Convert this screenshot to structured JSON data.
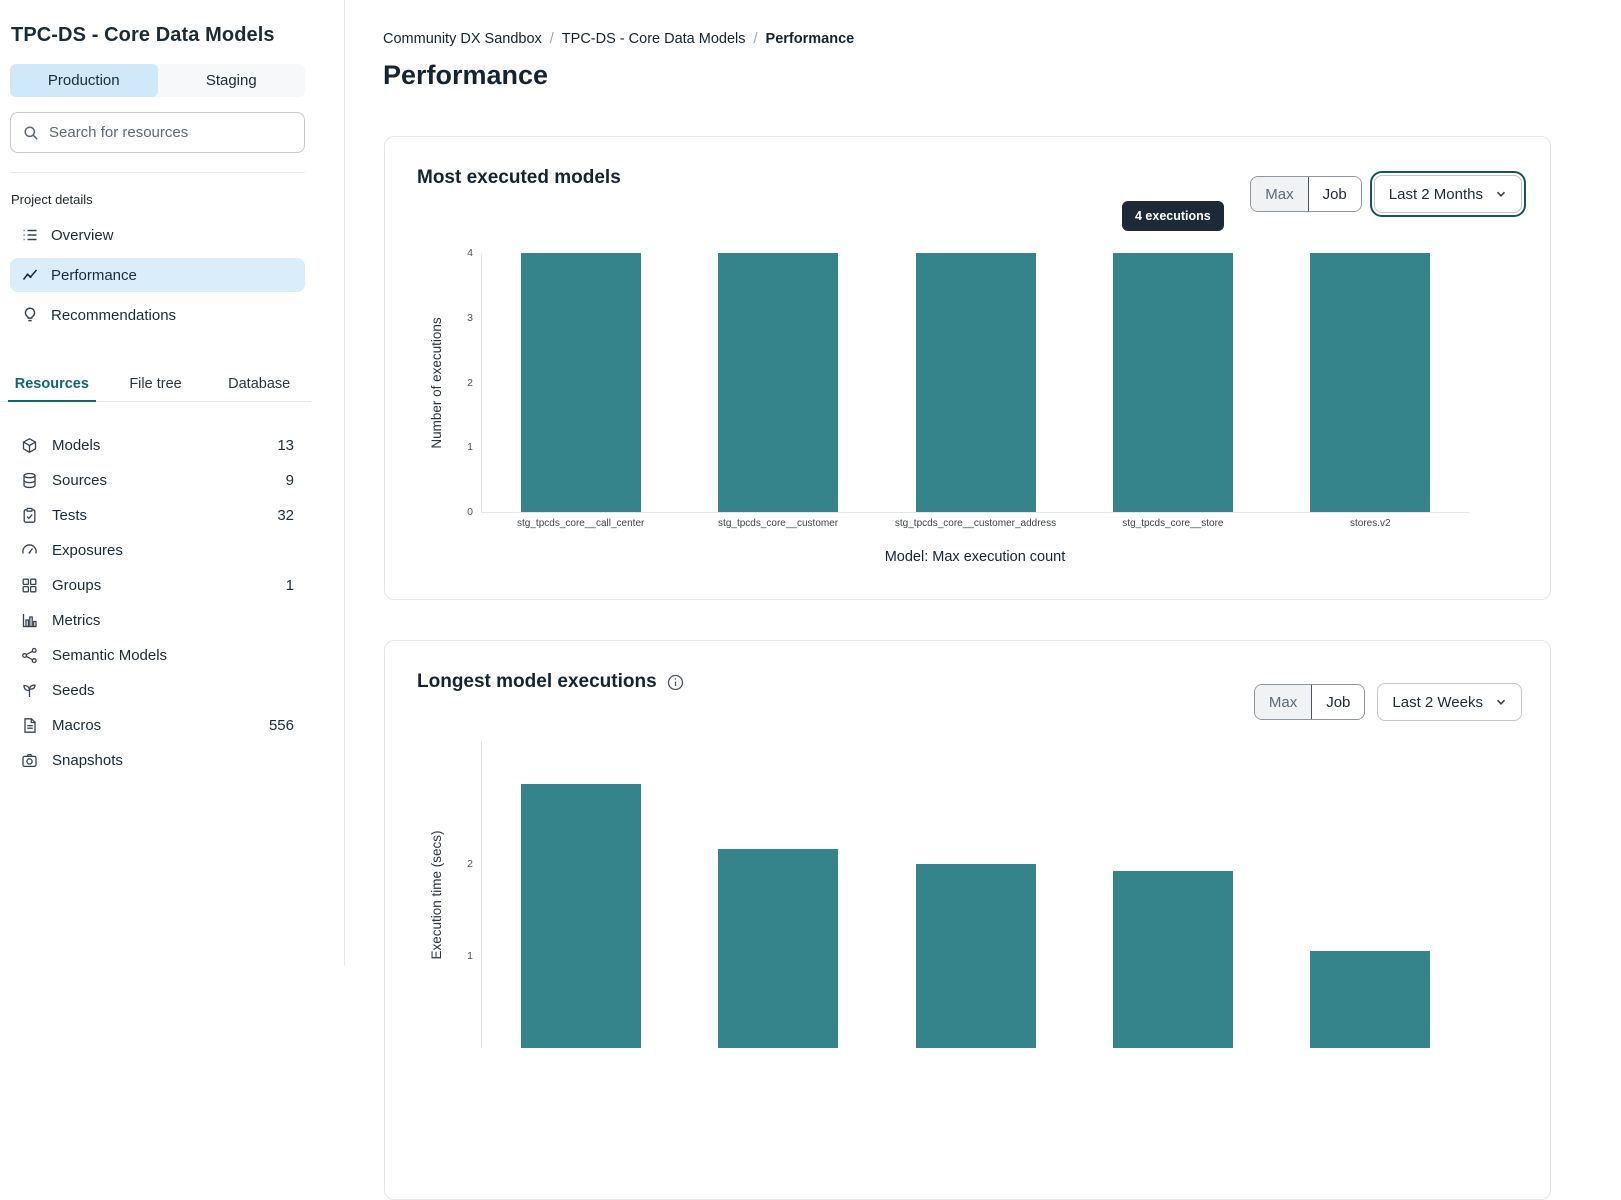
{
  "sidebar": {
    "project_title": "TPC-DS - Core Data Models",
    "environment_tabs": {
      "production": "Production",
      "staging": "Staging"
    },
    "search": {
      "placeholder": "Search for resources"
    },
    "project_details_label": "Project details",
    "nav": {
      "overview": "Overview",
      "performance": "Performance",
      "recommendations": "Recommendations"
    },
    "resource_tabs": {
      "resources": "Resources",
      "file_tree": "File tree",
      "database": "Database"
    },
    "resources": [
      {
        "icon": "cube-icon",
        "label": "Models",
        "count": "13"
      },
      {
        "icon": "database-icon",
        "label": "Sources",
        "count": "9"
      },
      {
        "icon": "clipboard-icon",
        "label": "Tests",
        "count": "32"
      },
      {
        "icon": "gauge-icon",
        "label": "Exposures",
        "count": ""
      },
      {
        "icon": "grid-icon",
        "label": "Groups",
        "count": "1"
      },
      {
        "icon": "bar-chart-icon",
        "label": "Metrics",
        "count": ""
      },
      {
        "icon": "share-nodes-icon",
        "label": "Semantic Models",
        "count": ""
      },
      {
        "icon": "sprout-icon",
        "label": "Seeds",
        "count": ""
      },
      {
        "icon": "file-icon",
        "label": "Macros",
        "count": "556"
      },
      {
        "icon": "camera-icon",
        "label": "Snapshots",
        "count": ""
      }
    ]
  },
  "breadcrumb": {
    "items": [
      "Community DX Sandbox",
      "TPC-DS - Core Data Models",
      "Performance"
    ],
    "separator": "/"
  },
  "page_title": "Performance",
  "most_executed": {
    "title": "Most executed models",
    "max_label": "Max",
    "job_label": "Job",
    "range_value": "Last 2 Months",
    "tooltip": "4 executions"
  },
  "longest_executions": {
    "title": "Longest model executions",
    "max_label": "Max",
    "job_label": "Job",
    "range_value": "Last 2 Weeks"
  },
  "chart_data": [
    {
      "type": "bar",
      "title": "Most executed models",
      "categories": [
        "stg_tpcds_core__call_center",
        "stg_tpcds_core__customer",
        "stg_tpcds_core__customer_address",
        "stg_tpcds_core__store",
        "stores.v2"
      ],
      "values": [
        4,
        4,
        4,
        4,
        4
      ],
      "xlabel": "Model: Max execution count",
      "ylabel": "Number of executions",
      "ylim": [
        0,
        4
      ],
      "yticks": [
        0,
        1,
        2,
        3,
        4
      ],
      "bar_color": "#35838B",
      "grid": false,
      "legend": false,
      "annotation": {
        "text": "4 executions",
        "bar_index": 3
      }
    },
    {
      "type": "bar",
      "title": "Longest model executions",
      "categories": [
        "",
        "",
        "",
        "",
        ""
      ],
      "values": [
        2.87,
        2.16,
        2.0,
        1.92,
        1.05
      ],
      "xlabel": "",
      "ylabel": "Execution time (secs)",
      "ylim": [
        0,
        3.34
      ],
      "yticks": [
        1,
        2
      ],
      "bar_color": "#35838B",
      "grid": false,
      "legend": false,
      "clipped_bottom": true
    }
  ]
}
